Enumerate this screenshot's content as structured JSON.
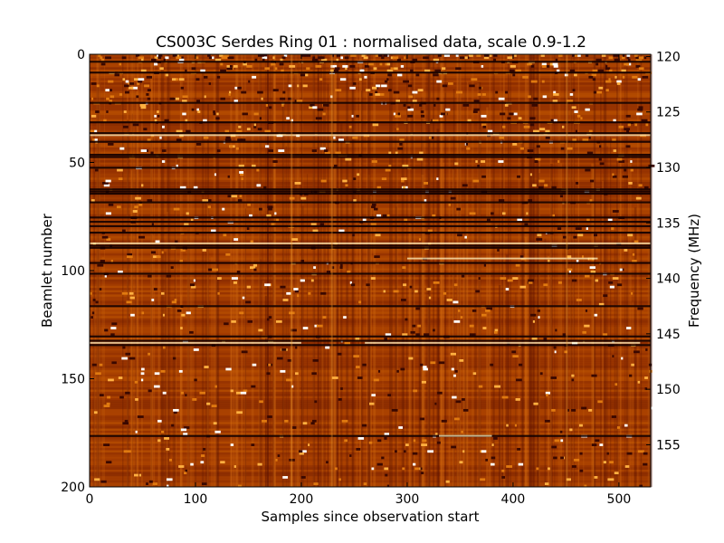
{
  "chart_data": {
    "type": "heatmap",
    "title": "CS003C Serdes Ring 01 : normalised data, scale 0.9-1.2",
    "xlabel": "Samples since observation start",
    "ylabel": "Beamlet number",
    "y2label": "Frequency (MHz)",
    "xlim": [
      0,
      530
    ],
    "ylim": [
      200,
      0
    ],
    "y2lim": [
      119.8,
      158.8
    ],
    "x_ticks": [
      "0",
      "100",
      "200",
      "300",
      "400",
      "500"
    ],
    "y_ticks": [
      "0",
      "50",
      "100",
      "150",
      "200"
    ],
    "y2_ticks": [
      "120",
      "125",
      "130",
      "135",
      "140",
      "145",
      "150",
      "155"
    ],
    "color_scale": {
      "min": 0.9,
      "max": 1.2,
      "colormap": "afmhot"
    },
    "grid": false,
    "legend": "none",
    "rows": 200,
    "columns": 530,
    "dark_beamlets": [
      3,
      8,
      22,
      31,
      36,
      40,
      46,
      47,
      52,
      62,
      63,
      64,
      68,
      75,
      77,
      79,
      82,
      88,
      89,
      96,
      101,
      116,
      130,
      132,
      134,
      176
    ],
    "bright_beamlets": [
      37,
      87,
      94,
      133,
      133,
      176
    ],
    "bright_column_samples": [
      190,
      228,
      450
    ]
  }
}
